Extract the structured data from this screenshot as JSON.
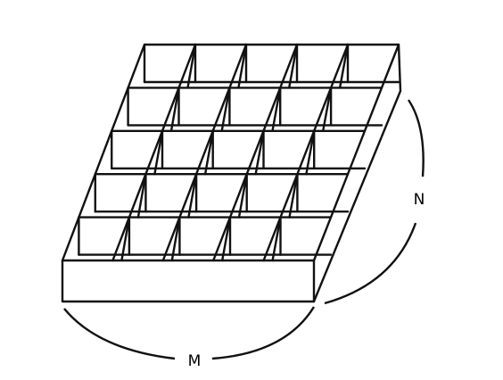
{
  "figure": {
    "description_type": "grid tray diagram",
    "grid_rows": 5,
    "grid_columns": 5,
    "labels": {
      "bottom": "M",
      "right": "N"
    },
    "stroke_color": "#111111",
    "background_color": "#ffffff"
  }
}
